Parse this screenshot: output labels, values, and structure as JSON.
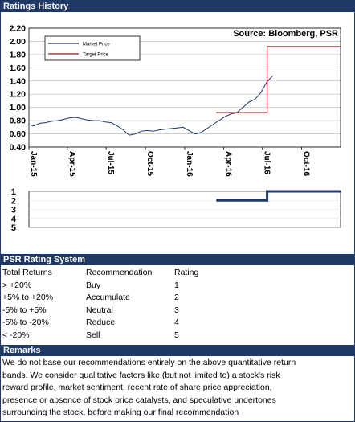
{
  "sections": {
    "history_title": "Ratings History",
    "psr_title": "PSR Rating System",
    "remarks_title": "Remarks"
  },
  "chart_data": [
    {
      "type": "line",
      "title": "",
      "source": "Source: Bloomberg, PSR",
      "ylim": [
        0.4,
        2.2
      ],
      "yticks": [
        "2.20",
        "2.00",
        "1.80",
        "1.60",
        "1.40",
        "1.20",
        "1.00",
        "0.80",
        "0.60",
        "0.40"
      ],
      "xticks": [
        "Jan-15",
        "Apr-15",
        "Jul-15",
        "Oct-15",
        "Jan-16",
        "Apr-16",
        "Jul-16",
        "Oct-16"
      ],
      "legend": [
        "Market Price",
        "Target Price"
      ],
      "legend_position": "top-left",
      "grid": "horizontal",
      "series": [
        {
          "name": "Market Price",
          "color": "#1f3864",
          "x": [
            "2015-01-01",
            "2015-01-12",
            "2015-01-26",
            "2015-02-09",
            "2015-02-23",
            "2015-03-09",
            "2015-03-23",
            "2015-04-06",
            "2015-04-20",
            "2015-05-04",
            "2015-05-18",
            "2015-06-01",
            "2015-06-15",
            "2015-06-29",
            "2015-07-13",
            "2015-07-27",
            "2015-08-10",
            "2015-08-24",
            "2015-09-07",
            "2015-09-21",
            "2015-10-05",
            "2015-10-19",
            "2015-11-02",
            "2015-11-16",
            "2015-11-30",
            "2015-12-14",
            "2015-12-28",
            "2016-01-11",
            "2016-01-25",
            "2016-02-08",
            "2016-02-22",
            "2016-03-07",
            "2016-03-21",
            "2016-04-04",
            "2016-04-18",
            "2016-05-02",
            "2016-05-16",
            "2016-05-30",
            "2016-06-13",
            "2016-06-27",
            "2016-07-11",
            "2016-07-25"
          ],
          "values": [
            0.74,
            0.72,
            0.76,
            0.77,
            0.79,
            0.8,
            0.82,
            0.84,
            0.85,
            0.83,
            0.81,
            0.8,
            0.8,
            0.78,
            0.77,
            0.72,
            0.66,
            0.58,
            0.6,
            0.64,
            0.65,
            0.64,
            0.66,
            0.67,
            0.68,
            0.69,
            0.7,
            0.65,
            0.6,
            0.62,
            0.68,
            0.74,
            0.8,
            0.86,
            0.9,
            0.92,
            1.0,
            1.08,
            1.12,
            1.22,
            1.38,
            1.48
          ]
        },
        {
          "name": "Target Price",
          "color": "#8b1a1a",
          "x": [
            "2016-03-15",
            "2016-07-12",
            "2016-07-12",
            "2016-12-31"
          ],
          "values": [
            0.92,
            0.92,
            1.92,
            1.92
          ]
        }
      ]
    },
    {
      "type": "line",
      "title": "",
      "ylim": [
        1,
        5
      ],
      "yticks": [
        "1",
        "2",
        "3",
        "4",
        "5"
      ],
      "series": [
        {
          "name": "",
          "color": "#1f3864",
          "x": [
            "2016-03-15",
            "2016-07-12",
            "2016-07-12",
            "2016-12-31"
          ],
          "values": [
            2,
            2,
            1,
            1
          ]
        }
      ]
    }
  ],
  "psr": {
    "headers": [
      "Total Returns",
      "Recommendation",
      "Rating"
    ],
    "rows": [
      [
        "> +20%",
        "Buy",
        "1"
      ],
      [
        "+5% to +20%",
        "Accumulate",
        "2"
      ],
      [
        "-5% to +5%",
        "Neutral",
        "3"
      ],
      [
        "-5% to -20%",
        "Reduce",
        "4"
      ],
      [
        "< -20%",
        "Sell",
        "5"
      ]
    ]
  },
  "remarks": {
    "lines": [
      "We do not base our recommendations entirely on the above quantitative return",
      "bands.  We consider qualitative factors like (but not limited to) a stock's risk",
      "reward profile, market sentiment, recent rate of share price appreciation,",
      "presence or absence of stock price catalysts, and speculative undertones",
      "surrounding the stock, before making our final recommendation"
    ]
  }
}
